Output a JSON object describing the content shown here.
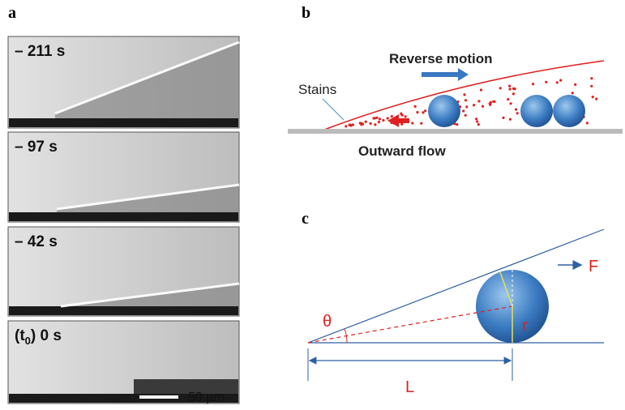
{
  "panels": {
    "a": {
      "label": "a",
      "frames": [
        {
          "time": "– 211 s"
        },
        {
          "time": "– 97 s"
        },
        {
          "time": "– 42 s"
        }
      ],
      "last_frame": {
        "prefix": "(t",
        "subscript": "0",
        "suffix": ") 0 s"
      },
      "scale_bar": "50 µm"
    },
    "b": {
      "label": "b",
      "reverse_motion": "Reverse motion",
      "stains": "Stains",
      "outward_flow": "Outward flow"
    },
    "c": {
      "label": "c",
      "theta": "θ",
      "force": "F",
      "radius": "r",
      "length": "L"
    }
  }
}
